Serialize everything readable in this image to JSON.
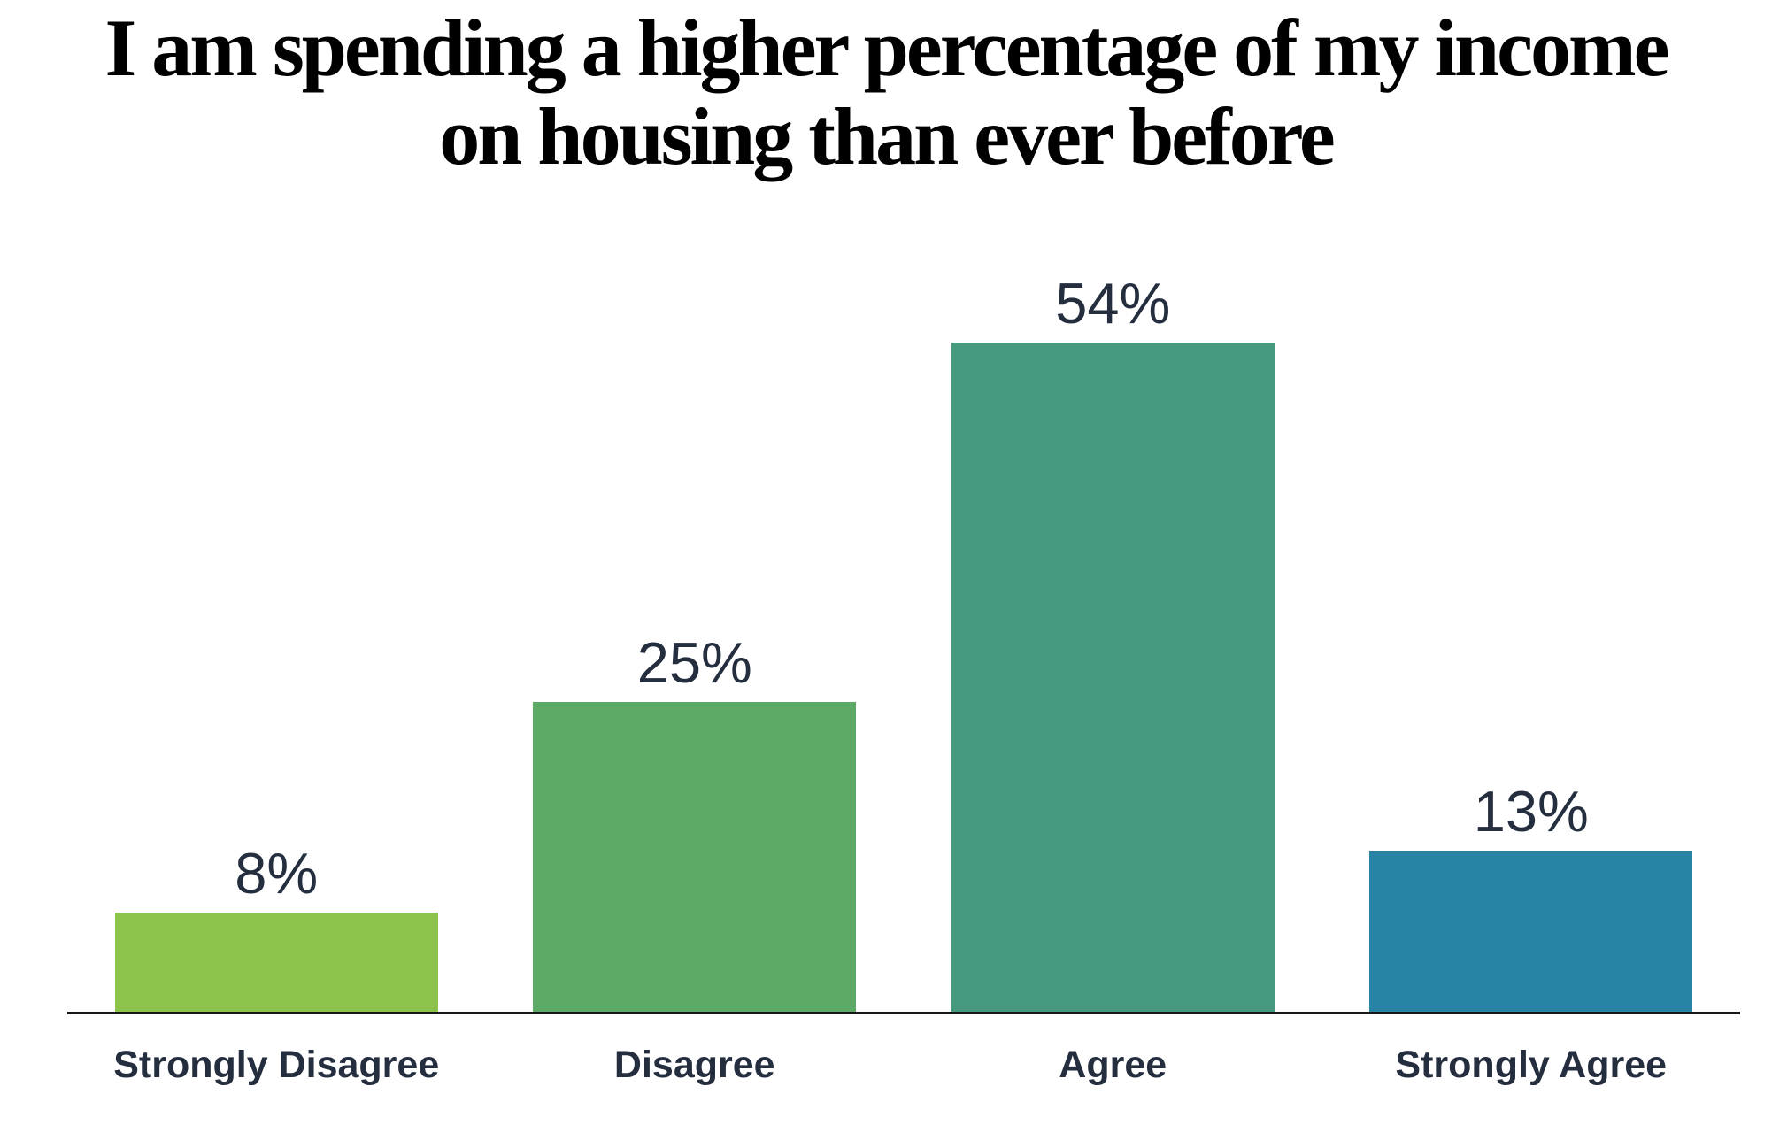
{
  "title": {
    "line1": "I am spending a higher percentage of my income",
    "line2": "on housing than ever before"
  },
  "colors": {
    "title_text": "#000000",
    "label_text": "#242E3F",
    "axis_line": "#161616"
  },
  "chart_data": {
    "type": "bar",
    "title": "I am spending a higher percentage of my income on housing than ever before",
    "categories": [
      "Strongly Disagree",
      "Disagree",
      "Agree",
      "Strongly Agree"
    ],
    "values": [
      8,
      25,
      54,
      13
    ],
    "value_labels": [
      "8%",
      "25%",
      "54%",
      "13%"
    ],
    "bar_colors": [
      "#8CC44B",
      "#5DAA68",
      "#45997F",
      "#2884A5"
    ],
    "xlabel": "",
    "ylabel": "",
    "ylim": [
      0,
      60
    ],
    "grid": false,
    "legend": false,
    "axis": "x-baseline-only",
    "value_labels_position": "above-bars"
  }
}
